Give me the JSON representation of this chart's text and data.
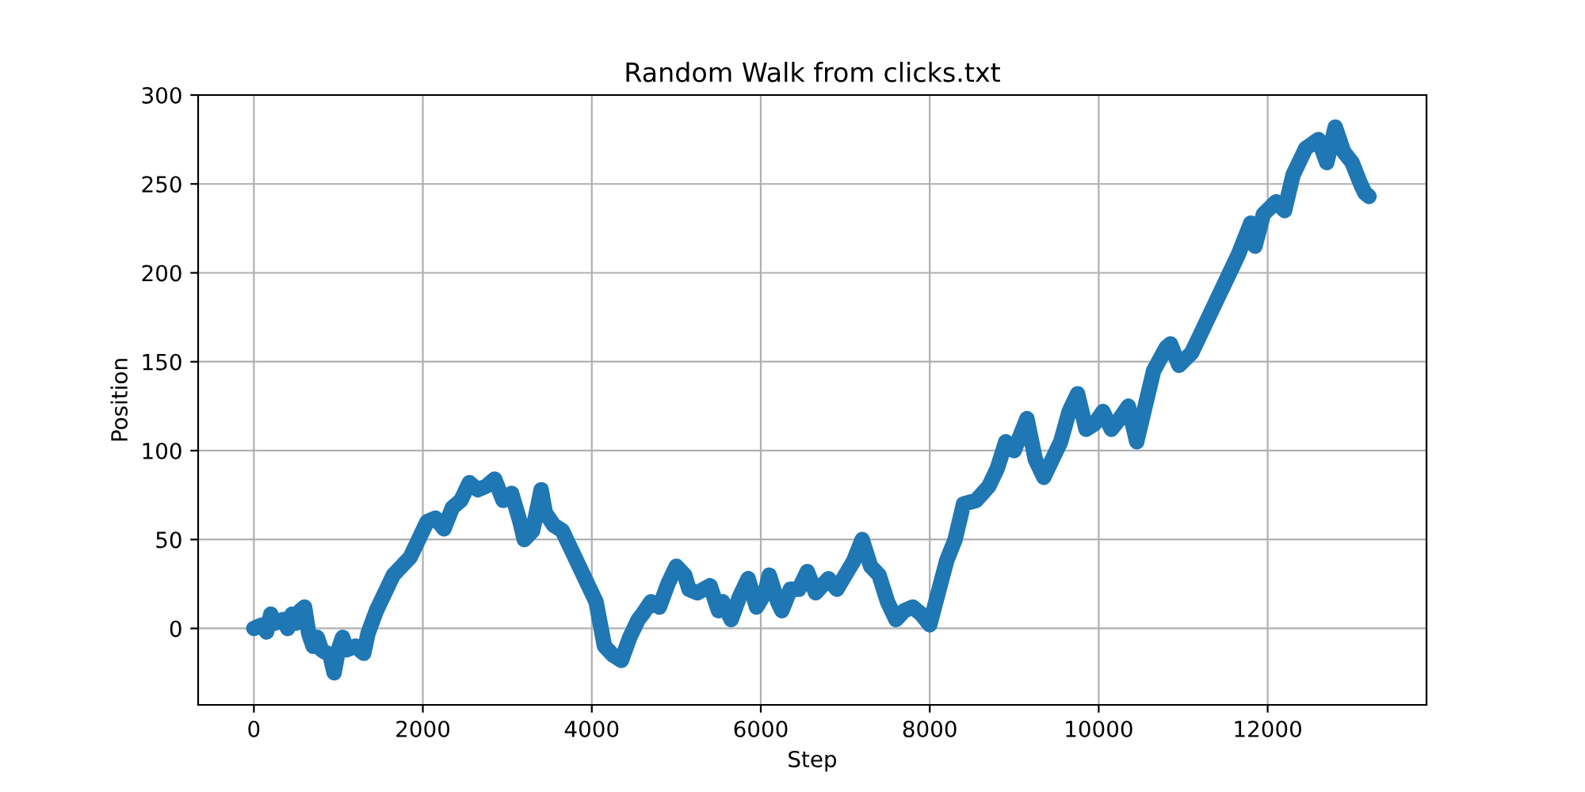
{
  "chart_data": {
    "type": "line",
    "title": "Random Walk from clicks.txt",
    "xlabel": "Step",
    "ylabel": "Position",
    "xlim": [
      -660,
      13880
    ],
    "ylim": [
      -43,
      300
    ],
    "xticks": [
      0,
      2000,
      4000,
      6000,
      8000,
      10000,
      12000
    ],
    "yticks": [
      0,
      50,
      100,
      150,
      200,
      250,
      300
    ],
    "grid": true,
    "marker": "none",
    "line_style": "solid",
    "series": [
      {
        "color": "#1f77b4",
        "x": [
          0,
          100,
          150,
          200,
          250,
          350,
          400,
          450,
          500,
          550,
          600,
          650,
          700,
          750,
          800,
          900,
          950,
          1000,
          1050,
          1100,
          1200,
          1300,
          1350,
          1450,
          1550,
          1650,
          1750,
          1850,
          1950,
          2050,
          2150,
          2250,
          2350,
          2450,
          2550,
          2650,
          2750,
          2850,
          2950,
          3050,
          3150,
          3200,
          3300,
          3400,
          3450,
          3550,
          3650,
          3750,
          3850,
          3950,
          4050,
          4150,
          4250,
          4350,
          4450,
          4550,
          4600,
          4700,
          4800,
          4900,
          5000,
          5100,
          5150,
          5250,
          5400,
          5500,
          5550,
          5650,
          5750,
          5850,
          5950,
          6050,
          6100,
          6200,
          6250,
          6350,
          6450,
          6550,
          6650,
          6800,
          6900,
          7000,
          7100,
          7200,
          7300,
          7400,
          7500,
          7600,
          7700,
          7800,
          7900,
          8000,
          8100,
          8200,
          8300,
          8400,
          8550,
          8700,
          8800,
          8900,
          9000,
          9150,
          9250,
          9350,
          9450,
          9550,
          9650,
          9750,
          9850,
          9950,
          10050,
          10150,
          10250,
          10350,
          10450,
          10550,
          10650,
          10800,
          10850,
          10950,
          11100,
          11200,
          11300,
          11400,
          11550,
          11650,
          11800,
          11850,
          11950,
          12100,
          12200,
          12300,
          12450,
          12600,
          12700,
          12800,
          12900,
          13000,
          13100,
          13150,
          13200
        ],
        "values": [
          0,
          2,
          -2,
          8,
          3,
          5,
          0,
          8,
          3,
          10,
          12,
          -3,
          -10,
          -5,
          -12,
          -15,
          -25,
          -12,
          -5,
          -12,
          -10,
          -14,
          -3,
          10,
          20,
          30,
          35,
          40,
          50,
          60,
          62,
          56,
          68,
          72,
          82,
          78,
          80,
          84,
          72,
          76,
          60,
          50,
          55,
          78,
          65,
          58,
          55,
          45,
          35,
          25,
          15,
          -10,
          -15,
          -18,
          -5,
          5,
          8,
          15,
          12,
          25,
          35,
          30,
          22,
          20,
          24,
          10,
          15,
          5,
          18,
          28,
          12,
          20,
          30,
          15,
          10,
          22,
          22,
          32,
          20,
          28,
          22,
          30,
          38,
          50,
          35,
          30,
          15,
          5,
          10,
          12,
          8,
          2,
          20,
          38,
          50,
          70,
          72,
          80,
          90,
          105,
          100,
          118,
          95,
          85,
          95,
          105,
          122,
          132,
          112,
          115,
          122,
          112,
          118,
          125,
          105,
          125,
          145,
          158,
          160,
          148,
          155,
          165,
          175,
          185,
          200,
          210,
          228,
          215,
          233,
          240,
          235,
          255,
          270,
          275,
          262,
          282,
          268,
          262,
          250,
          245,
          243
        ]
      }
    ]
  }
}
